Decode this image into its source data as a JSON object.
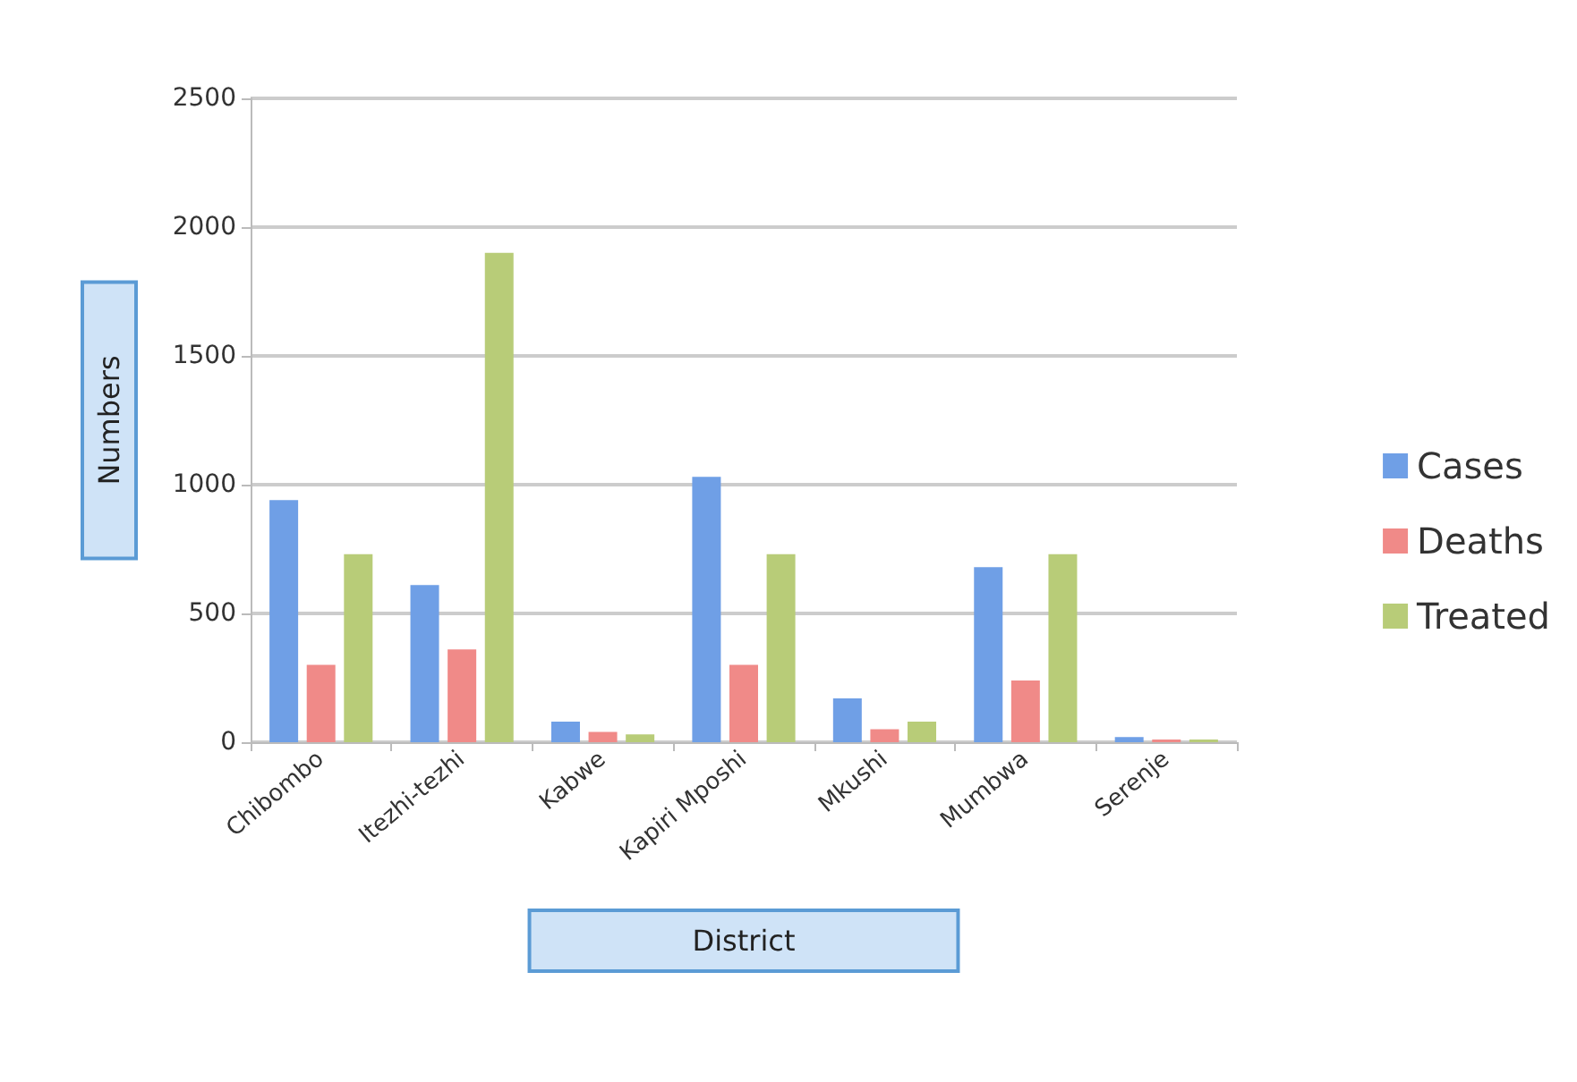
{
  "chart_data": {
    "type": "bar",
    "xlabel": "District",
    "ylabel": "Numbers",
    "categories": [
      "Chibombo",
      "Itezhi-tezhi",
      "Kabwe",
      "Kapiri Mposhi",
      "Mkushi",
      "Mumbwa",
      "Serenje"
    ],
    "series": [
      {
        "name": "Cases",
        "color": "#6f9fe6",
        "values": [
          940,
          610,
          80,
          1030,
          170,
          680,
          20
        ]
      },
      {
        "name": "Deaths",
        "color": "#f08a88",
        "values": [
          300,
          360,
          40,
          300,
          50,
          240,
          10
        ]
      },
      {
        "name": "Treated",
        "color": "#b8cc78",
        "values": [
          730,
          1900,
          30,
          730,
          80,
          730,
          10
        ]
      }
    ],
    "ylim": [
      0,
      2500
    ],
    "yticks": [
      0,
      500,
      1000,
      1500,
      2000,
      2500
    ],
    "grid": true,
    "legend": "right"
  }
}
